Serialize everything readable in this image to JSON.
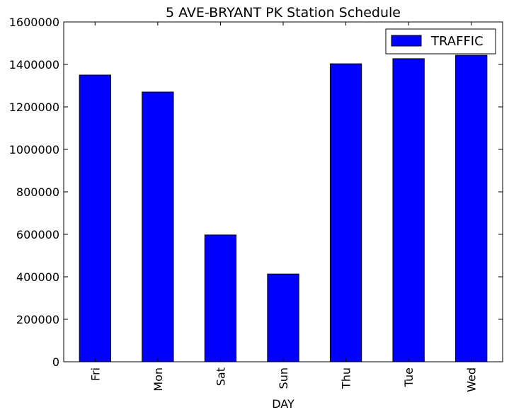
{
  "chart_data": {
    "type": "bar",
    "title": "5 AVE-BRYANT PK Station Schedule",
    "xlabel": "DAY",
    "ylabel": "",
    "categories": [
      "Fri",
      "Mon",
      "Sat",
      "Sun",
      "Thu",
      "Tue",
      "Wed"
    ],
    "series": [
      {
        "name": "TRAFFIC",
        "values": [
          1350000,
          1270000,
          597000,
          413000,
          1403000,
          1427000,
          1443000
        ],
        "color": "#0000ff"
      }
    ],
    "ylim": [
      0,
      1600000
    ],
    "yticks": [
      0,
      200000,
      400000,
      600000,
      800000,
      1000000,
      1200000,
      1400000,
      1600000
    ],
    "ytick_labels": [
      "0",
      "200000",
      "400000",
      "600000",
      "800000",
      "1000000",
      "1200000",
      "1400000",
      "1600000"
    ],
    "grid": false,
    "legend_position": "top-right"
  }
}
